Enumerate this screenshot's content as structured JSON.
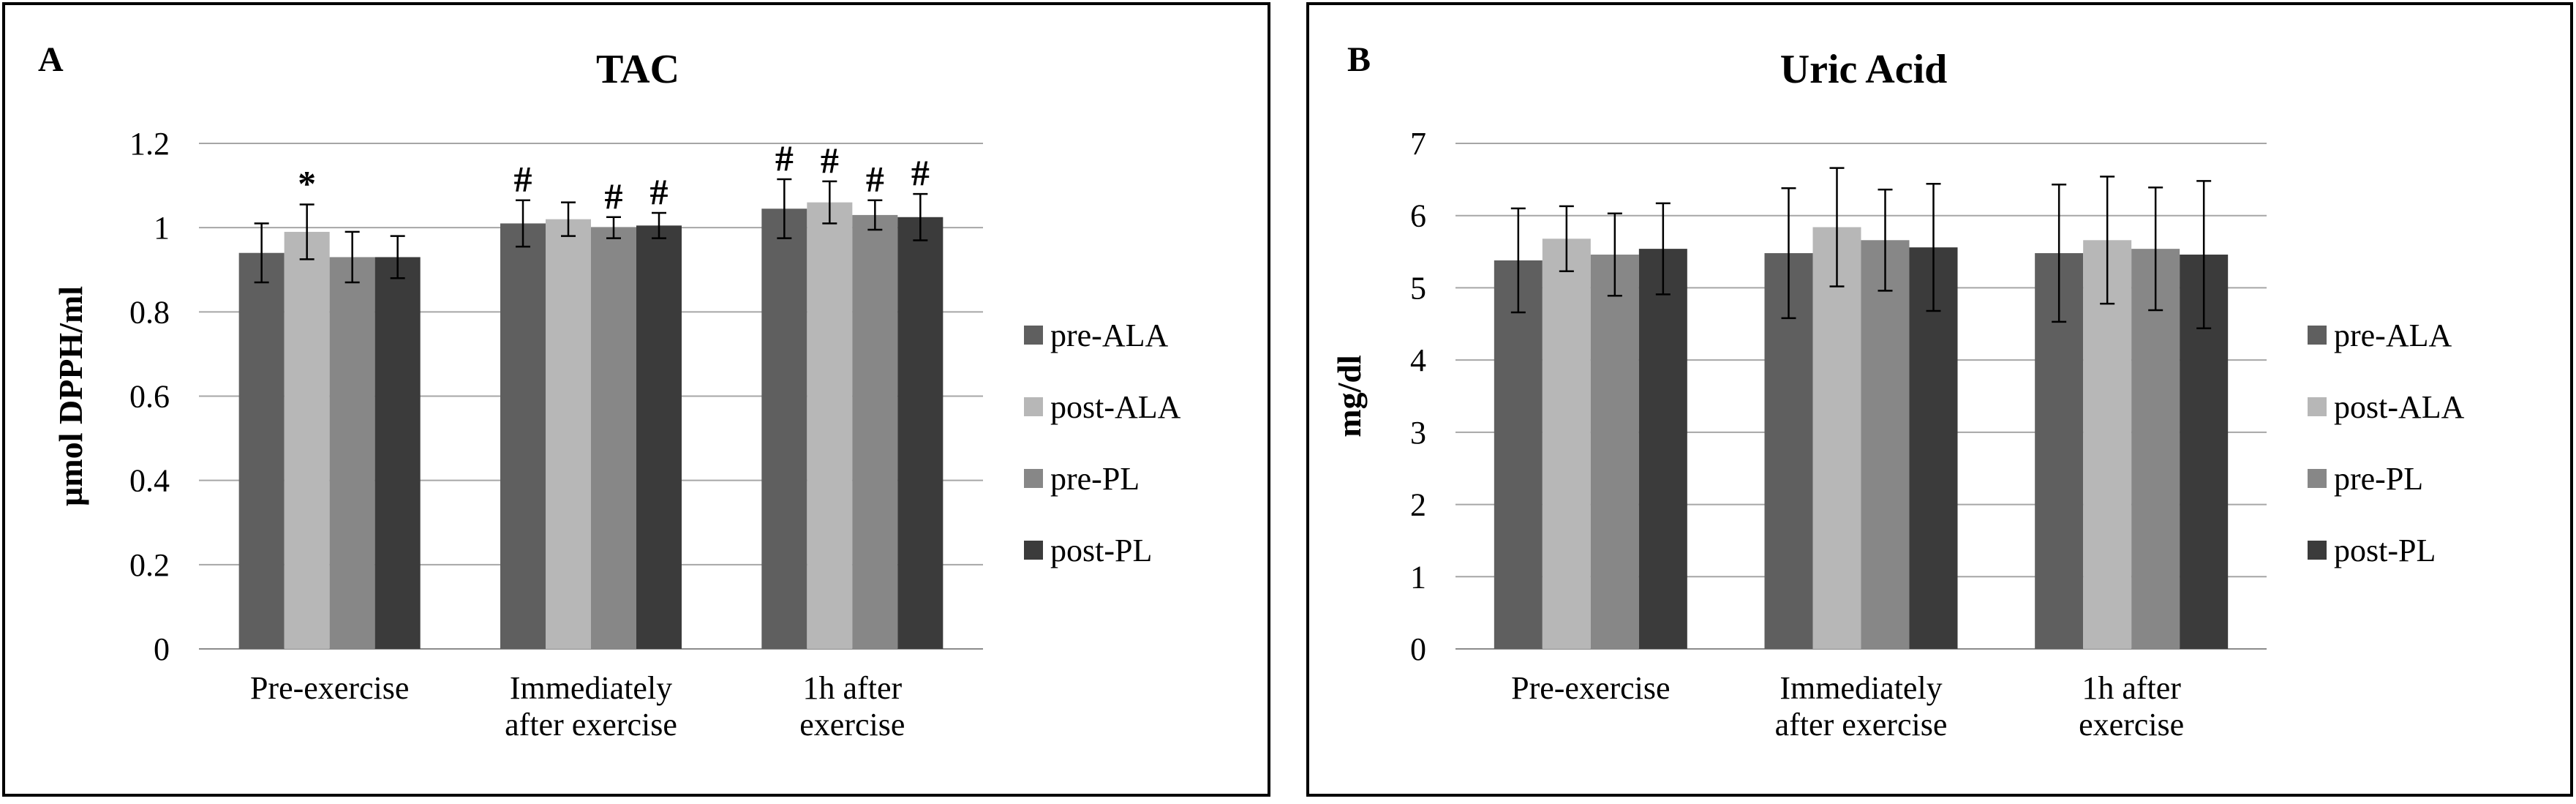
{
  "palette": {
    "series_colors": [
      "#5f5f5f",
      "#b7b7b7",
      "#878787",
      "#3b3b3b"
    ],
    "gridline": "#a6a6a6",
    "frame": "#000000"
  },
  "chart_data": [
    {
      "type": "bar",
      "panel_label": "A",
      "title": "TAC",
      "ylabel": "µmol DPPH/ml",
      "xlabel": "",
      "ylim": [
        0,
        1.2
      ],
      "ytick_step": 0.2,
      "ytick_labels": [
        "0",
        "0.2",
        "0.4",
        "0.6",
        "0.8",
        "1",
        "1.2"
      ],
      "grid": true,
      "legend": "right",
      "categories": [
        [
          "Pre-exercise"
        ],
        [
          "Immediately",
          "after exercise"
        ],
        [
          "1h after",
          "exercise"
        ]
      ],
      "series": [
        {
          "name": "pre-ALA",
          "values": [
            0.94,
            1.01,
            1.045
          ],
          "errors": [
            0.07,
            0.055,
            0.07
          ],
          "markers": [
            "",
            "#",
            "#"
          ]
        },
        {
          "name": "post-ALA",
          "values": [
            0.99,
            1.02,
            1.06
          ],
          "errors": [
            0.065,
            0.04,
            0.05
          ],
          "markers": [
            "*",
            "",
            "#"
          ]
        },
        {
          "name": "pre-PL",
          "values": [
            0.93,
            1.0,
            1.03
          ],
          "errors": [
            0.06,
            0.025,
            0.035
          ],
          "markers": [
            "",
            "#",
            "#"
          ]
        },
        {
          "name": "post-PL",
          "values": [
            0.93,
            1.005,
            1.025
          ],
          "errors": [
            0.05,
            0.03,
            0.055
          ],
          "markers": [
            "",
            "#",
            "#"
          ]
        }
      ]
    },
    {
      "type": "bar",
      "panel_label": "B",
      "title": "Uric Acid",
      "ylabel": "mg/dl",
      "xlabel": "",
      "ylim": [
        0,
        7
      ],
      "ytick_step": 1,
      "ytick_labels": [
        "0",
        "1",
        "2",
        "3",
        "4",
        "5",
        "6",
        "7"
      ],
      "grid": true,
      "legend": "right",
      "categories": [
        [
          "Pre-exercise"
        ],
        [
          "Immediately",
          "after exercise"
        ],
        [
          "1h after",
          "exercise"
        ]
      ],
      "series": [
        {
          "name": "pre-ALA",
          "values": [
            5.38,
            5.48,
            5.48
          ],
          "errors": [
            0.72,
            0.9,
            0.95
          ],
          "markers": [
            "",
            "",
            ""
          ]
        },
        {
          "name": "post-ALA",
          "values": [
            5.68,
            5.84,
            5.66
          ],
          "errors": [
            0.45,
            0.82,
            0.88
          ],
          "markers": [
            "",
            "",
            ""
          ]
        },
        {
          "name": "pre-PL",
          "values": [
            5.46,
            5.66,
            5.54
          ],
          "errors": [
            0.57,
            0.7,
            0.85
          ],
          "markers": [
            "",
            "",
            ""
          ]
        },
        {
          "name": "post-PL",
          "values": [
            5.54,
            5.56,
            5.46
          ],
          "errors": [
            0.63,
            0.88,
            1.02
          ],
          "markers": [
            "",
            "",
            ""
          ]
        }
      ]
    }
  ]
}
